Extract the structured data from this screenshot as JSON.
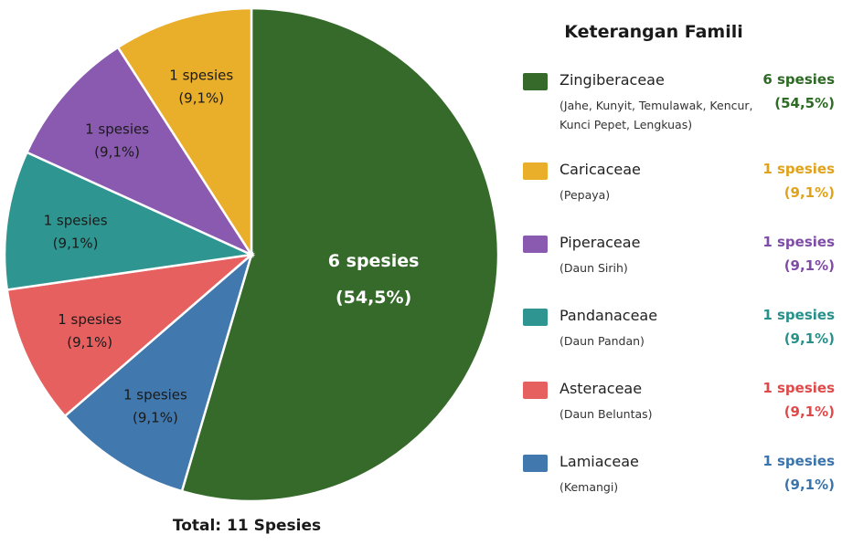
{
  "chart_data": {
    "type": "pie",
    "title": "",
    "total_label": "Total: 11 Spesies",
    "slices": [
      {
        "family": "Zingiberaceae",
        "members": "(Jahe, Kunyit, Temulawak, Kencur, Kunci Pepet, Lengkuas)",
        "value": 6,
        "count_label": "6 spesies",
        "pct_label": "(54,5%)",
        "color": "#356a2b",
        "text_color": "#ffffff",
        "legend_text_color": "#2e6a25"
      },
      {
        "family": "Lamiaceae",
        "members": "(Kemangi)",
        "value": 1,
        "count_label": "1 spesies",
        "pct_label": "(9,1%)",
        "color": "#4178ad",
        "text_color": "#1a1a1a",
        "legend_text_color": "#3b74ab"
      },
      {
        "family": "Asteraceae",
        "members": "(Daun Beluntas)",
        "value": 1,
        "count_label": "1 spesies",
        "pct_label": "(9,1%)",
        "color": "#e66060",
        "text_color": "#1a1a1a",
        "legend_text_color": "#e0494a"
      },
      {
        "family": "Pandanaceae",
        "members": "(Daun Pandan)",
        "value": 1,
        "count_label": "1 spesies",
        "pct_label": "(9,1%)",
        "color": "#2f9590",
        "text_color": "#1a1a1a",
        "legend_text_color": "#27908a"
      },
      {
        "family": "Piperaceae",
        "members": "(Daun Sirih)",
        "value": 1,
        "count_label": "1 spesies",
        "pct_label": "(9,1%)",
        "color": "#8a5ab0",
        "text_color": "#1a1a1a",
        "legend_text_color": "#7f4ca6"
      },
      {
        "family": "Caricaceae",
        "members": "(Pepaya)",
        "value": 1,
        "count_label": "1 spesies",
        "pct_label": "(9,1%)",
        "color": "#e9ae2a",
        "text_color": "#1a1a1a",
        "legend_text_color": "#e0a21a"
      }
    ],
    "legend_title": "Keterangan Famili",
    "legend_order": [
      "Zingiberaceae",
      "Caricaceae",
      "Piperaceae",
      "Pandanaceae",
      "Asteraceae",
      "Lamiaceae"
    ],
    "legend_placement": "right"
  }
}
